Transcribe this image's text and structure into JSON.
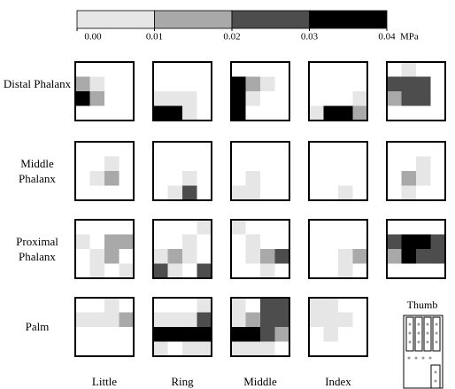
{
  "chart_data": {
    "type": "heatmap",
    "unit": "MPa",
    "colorbar_ticks": [
      {
        "value": 0,
        "label": "0.00"
      },
      0.01,
      0.02,
      0.03,
      0.04
    ],
    "colors": [
      "#e6e6e6",
      "#a9a9a9",
      "#4d4d4d",
      "#000000"
    ],
    "rows": [
      "Distal Phalanx",
      "Middle Phalanx",
      "Proximal Phalanx",
      "Palm"
    ],
    "columns": [
      "Little",
      "Ring",
      "Middle",
      "Index"
    ],
    "thumb_label": "Thumb",
    "panels": [
      [
        [
          [
            null,
            null,
            null,
            null
          ],
          [
            0.015,
            0.005,
            null,
            null
          ],
          [
            0.035,
            0.015,
            null,
            null
          ],
          [
            null,
            null,
            null,
            null
          ]
        ],
        [
          [
            null,
            null,
            null,
            null
          ],
          [
            null,
            null,
            null,
            null
          ],
          [
            0.005,
            0.005,
            0.005,
            null
          ],
          [
            0.035,
            0.035,
            0.005,
            null
          ]
        ],
        [
          [
            null,
            null,
            null,
            null
          ],
          [
            0.035,
            0.015,
            0.005,
            null
          ],
          [
            0.035,
            0.005,
            null,
            null
          ],
          [
            0.035,
            null,
            null,
            null
          ]
        ],
        [
          [
            null,
            null,
            null,
            null
          ],
          [
            null,
            null,
            null,
            null
          ],
          [
            null,
            null,
            null,
            0.005
          ],
          [
            0.005,
            0.035,
            0.035,
            0.015
          ]
        ],
        [
          [
            null,
            0.005,
            null,
            null
          ],
          [
            0.025,
            0.025,
            0.025,
            null
          ],
          [
            0.015,
            0.025,
            0.025,
            null
          ],
          [
            null,
            null,
            null,
            null
          ]
        ]
      ],
      [
        [
          [
            null,
            null,
            null,
            null
          ],
          [
            null,
            null,
            0.005,
            null
          ],
          [
            null,
            0.005,
            0.015,
            null
          ],
          [
            null,
            null,
            null,
            null
          ]
        ],
        [
          [
            null,
            null,
            null,
            null
          ],
          [
            null,
            null,
            null,
            null
          ],
          [
            null,
            null,
            0.005,
            null
          ],
          [
            null,
            0.005,
            0.025,
            null
          ]
        ],
        [
          [
            null,
            null,
            null,
            null
          ],
          [
            null,
            null,
            null,
            null
          ],
          [
            null,
            0.005,
            null,
            null
          ],
          [
            0.005,
            0.005,
            null,
            null
          ]
        ],
        [
          [
            null,
            null,
            null,
            null
          ],
          [
            null,
            null,
            null,
            null
          ],
          [
            null,
            null,
            null,
            null
          ],
          [
            null,
            null,
            0.005,
            null
          ]
        ],
        [
          [
            null,
            null,
            null,
            null
          ],
          [
            null,
            null,
            0.005,
            null
          ],
          [
            null,
            0.015,
            0.005,
            null
          ],
          [
            null,
            0.005,
            null,
            null
          ]
        ]
      ],
      [
        [
          [
            null,
            null,
            null,
            null
          ],
          [
            0.005,
            null,
            0.015,
            0.015
          ],
          [
            null,
            0.005,
            0.015,
            null
          ],
          [
            null,
            0.005,
            null,
            0.005
          ]
        ],
        [
          [
            null,
            null,
            null,
            0.005
          ],
          [
            null,
            null,
            0.005,
            null
          ],
          [
            0.005,
            0.015,
            0.005,
            null
          ],
          [
            0.025,
            0.005,
            null,
            0.025
          ]
        ],
        [
          [
            0.005,
            null,
            null,
            null
          ],
          [
            null,
            0.005,
            null,
            null
          ],
          [
            null,
            0.005,
            0.015,
            0.025
          ],
          [
            null,
            null,
            0.005,
            null
          ]
        ],
        [
          [
            null,
            null,
            null,
            null
          ],
          [
            null,
            null,
            null,
            null
          ],
          [
            null,
            null,
            0.005,
            0.015
          ],
          [
            null,
            null,
            0.005,
            null
          ]
        ],
        [
          [
            null,
            null,
            null,
            null
          ],
          [
            0.025,
            0.035,
            0.035,
            0.025
          ],
          [
            0.015,
            0.035,
            0.025,
            0.025
          ],
          [
            null,
            null,
            null,
            null
          ]
        ]
      ],
      [
        [
          [
            null,
            null,
            0.005,
            null
          ],
          [
            0.005,
            0.005,
            0.005,
            0.015
          ],
          [
            null,
            null,
            null,
            null
          ],
          [
            null,
            null,
            null,
            null
          ]
        ],
        [
          [
            null,
            null,
            null,
            0.005
          ],
          [
            0.005,
            0.005,
            0.005,
            0.025
          ],
          [
            0.035,
            0.035,
            0.035,
            0.035
          ],
          [
            0.005,
            null,
            0.005,
            0.005
          ]
        ],
        [
          [
            0.005,
            null,
            0.025,
            0.025
          ],
          [
            0.005,
            0.015,
            0.025,
            0.025
          ],
          [
            0.035,
            0.035,
            0.025,
            0.015
          ],
          [
            0.005,
            0.005,
            0.005,
            null
          ]
        ],
        [
          [
            0.005,
            0.005,
            null,
            null
          ],
          [
            0.005,
            0.005,
            0.005,
            null
          ],
          [
            null,
            0.005,
            null,
            null
          ],
          [
            null,
            null,
            null,
            null
          ]
        ]
      ]
    ]
  }
}
